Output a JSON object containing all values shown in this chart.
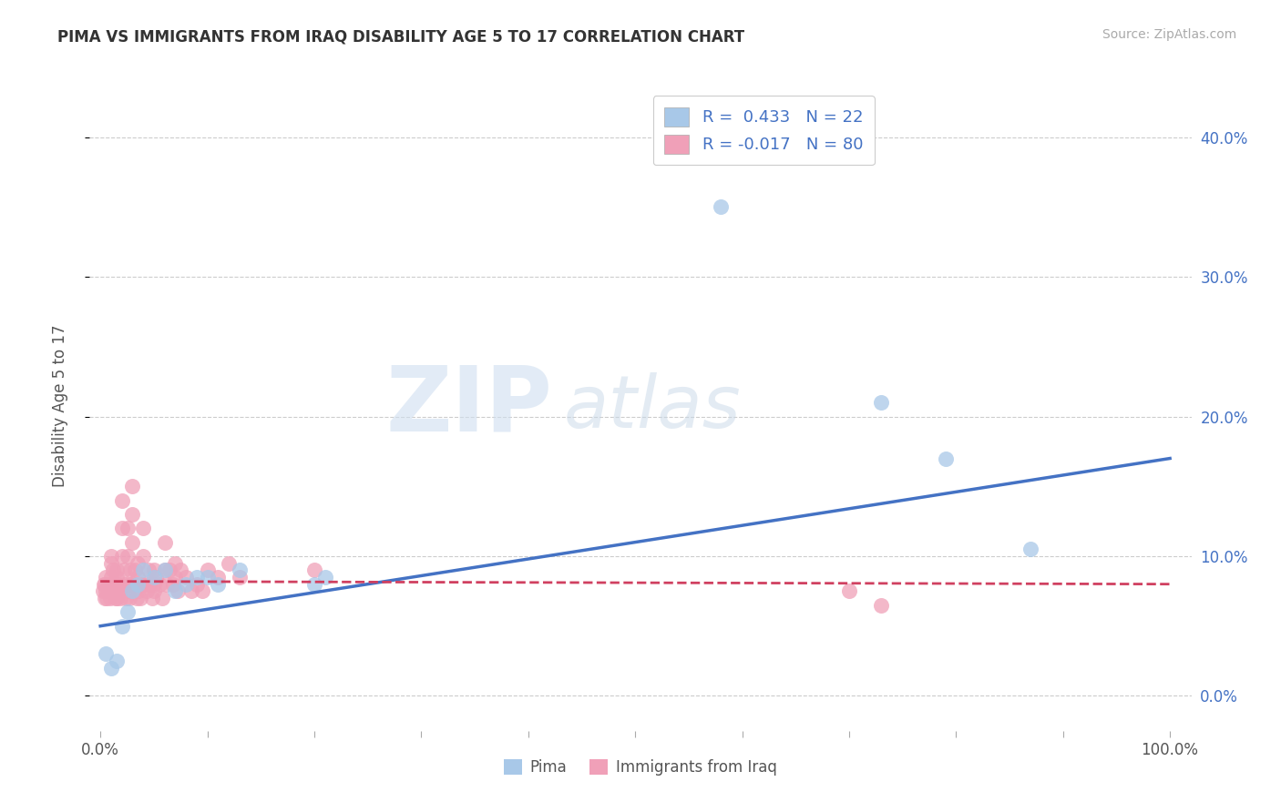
{
  "title": "PIMA VS IMMIGRANTS FROM IRAQ DISABILITY AGE 5 TO 17 CORRELATION CHART",
  "source": "Source: ZipAtlas.com",
  "ylabel": "Disability Age 5 to 17",
  "xlim": [
    -0.01,
    1.02
  ],
  "ylim": [
    -0.025,
    0.44
  ],
  "xticks": [
    0.0,
    0.1,
    0.2,
    0.3,
    0.4,
    0.5,
    0.6,
    0.7,
    0.8,
    0.9,
    1.0
  ],
  "xtick_labels_show": [
    0.0,
    1.0
  ],
  "yticks": [
    0.0,
    0.1,
    0.2,
    0.3,
    0.4
  ],
  "ytick_labels": [
    "0.0%",
    "10.0%",
    "20.0%",
    "30.0%",
    "40.0%"
  ],
  "pima_R": 0.433,
  "pima_N": 22,
  "iraq_R": -0.017,
  "iraq_N": 80,
  "pima_color": "#a8c8e8",
  "iraq_color": "#f0a0b8",
  "pima_line_color": "#4472c4",
  "iraq_line_color": "#d04060",
  "background_color": "#ffffff",
  "legend_pima_label": "Pima",
  "legend_iraq_label": "Immigrants from Iraq",
  "pima_x": [
    0.005,
    0.01,
    0.015,
    0.02,
    0.025,
    0.03,
    0.035,
    0.04,
    0.05,
    0.06,
    0.07,
    0.08,
    0.09,
    0.1,
    0.11,
    0.13,
    0.2,
    0.21,
    0.58,
    0.73,
    0.79,
    0.87
  ],
  "pima_y": [
    0.03,
    0.02,
    0.025,
    0.05,
    0.06,
    0.075,
    0.08,
    0.09,
    0.085,
    0.09,
    0.075,
    0.08,
    0.085,
    0.085,
    0.08,
    0.09,
    0.08,
    0.085,
    0.35,
    0.21,
    0.17,
    0.105
  ],
  "iraq_x": [
    0.002,
    0.003,
    0.004,
    0.004,
    0.005,
    0.005,
    0.006,
    0.007,
    0.008,
    0.009,
    0.01,
    0.01,
    0.01,
    0.012,
    0.013,
    0.014,
    0.015,
    0.015,
    0.015,
    0.016,
    0.017,
    0.018,
    0.019,
    0.02,
    0.02,
    0.02,
    0.022,
    0.023,
    0.024,
    0.025,
    0.025,
    0.025,
    0.026,
    0.027,
    0.028,
    0.028,
    0.03,
    0.03,
    0.03,
    0.032,
    0.033,
    0.034,
    0.035,
    0.035,
    0.036,
    0.037,
    0.038,
    0.04,
    0.04,
    0.042,
    0.043,
    0.045,
    0.046,
    0.048,
    0.05,
    0.05,
    0.05,
    0.052,
    0.055,
    0.058,
    0.06,
    0.06,
    0.062,
    0.065,
    0.068,
    0.07,
    0.07,
    0.072,
    0.075,
    0.08,
    0.085,
    0.09,
    0.095,
    0.1,
    0.11,
    0.12,
    0.13,
    0.2,
    0.7,
    0.73
  ],
  "iraq_y": [
    0.075,
    0.08,
    0.07,
    0.08,
    0.075,
    0.085,
    0.07,
    0.075,
    0.08,
    0.07,
    0.1,
    0.095,
    0.085,
    0.09,
    0.08,
    0.07,
    0.09,
    0.085,
    0.07,
    0.08,
    0.075,
    0.08,
    0.07,
    0.14,
    0.12,
    0.1,
    0.09,
    0.08,
    0.07,
    0.12,
    0.1,
    0.08,
    0.075,
    0.07,
    0.09,
    0.08,
    0.15,
    0.13,
    0.11,
    0.09,
    0.08,
    0.07,
    0.095,
    0.085,
    0.075,
    0.07,
    0.08,
    0.12,
    0.1,
    0.08,
    0.075,
    0.09,
    0.08,
    0.07,
    0.09,
    0.08,
    0.075,
    0.085,
    0.08,
    0.07,
    0.11,
    0.09,
    0.08,
    0.09,
    0.08,
    0.095,
    0.085,
    0.075,
    0.09,
    0.085,
    0.075,
    0.08,
    0.075,
    0.09,
    0.085,
    0.095,
    0.085,
    0.09,
    0.075,
    0.065
  ],
  "pima_line_x0": 0.0,
  "pima_line_y0": 0.05,
  "pima_line_x1": 1.0,
  "pima_line_y1": 0.17,
  "iraq_line_x0": 0.0,
  "iraq_line_y0": 0.082,
  "iraq_line_x1": 1.0,
  "iraq_line_y1": 0.08
}
